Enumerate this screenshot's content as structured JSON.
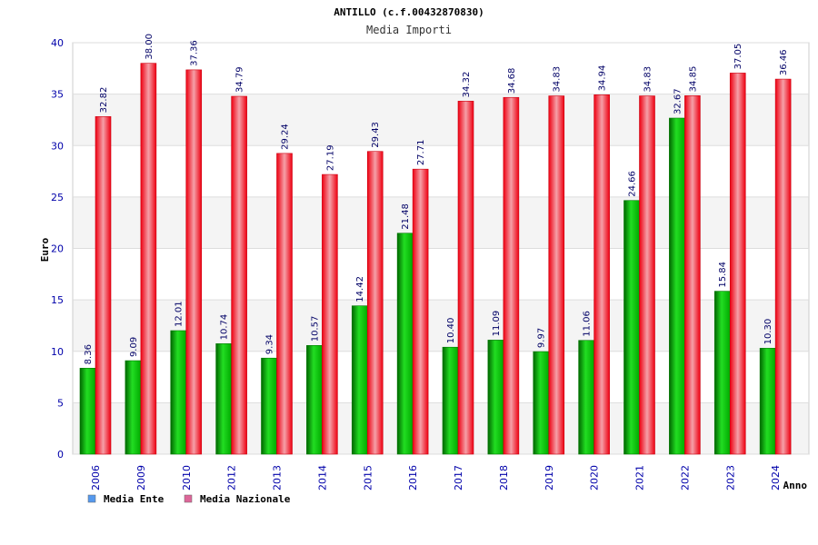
{
  "chart_data": {
    "type": "bar",
    "title": "ANTILLO (c.f.00432870830)",
    "subtitle": "Media Importi",
    "xlabel": "Anno",
    "ylabel": "Euro",
    "ylim": [
      0,
      40
    ],
    "yticks": [
      0,
      5,
      10,
      15,
      20,
      25,
      30,
      35,
      40
    ],
    "grid": true,
    "legend_position": "bottom-left",
    "categories": [
      "2006",
      "2009",
      "2010",
      "2012",
      "2013",
      "2014",
      "2015",
      "2016",
      "2017",
      "2018",
      "2019",
      "2020",
      "2021",
      "2022",
      "2023",
      "2024"
    ],
    "series": [
      {
        "name": "Media Ente",
        "color": "#00bb00",
        "legend_color": "#5599ee",
        "values": [
          8.36,
          9.09,
          12.01,
          10.74,
          9.34,
          10.57,
          14.42,
          21.48,
          10.4,
          11.09,
          9.97,
          11.06,
          24.66,
          32.67,
          15.84,
          10.3
        ],
        "labels": [
          "8.36",
          "9.09",
          "12.01",
          "10.74",
          "9.34",
          "10.57",
          "14.42",
          "21.48",
          "10.40",
          "11.09",
          "9.97",
          "11.06",
          "24.66",
          "32.67",
          "15.84",
          "10.30"
        ]
      },
      {
        "name": "Media Nazionale",
        "color": "#ee1122",
        "legend_color": "#dd6699",
        "values": [
          32.82,
          38.0,
          37.36,
          34.79,
          29.24,
          27.19,
          29.43,
          27.71,
          34.32,
          34.68,
          34.83,
          34.94,
          34.83,
          34.85,
          37.05,
          36.46
        ],
        "labels": [
          "32.82",
          "38.00",
          "37.36",
          "34.79",
          "29.24",
          "27.19",
          "29.43",
          "27.71",
          "34.32",
          "34.68",
          "34.83",
          "34.94",
          "34.83",
          "34.85",
          "37.05",
          "36.46"
        ]
      }
    ]
  }
}
